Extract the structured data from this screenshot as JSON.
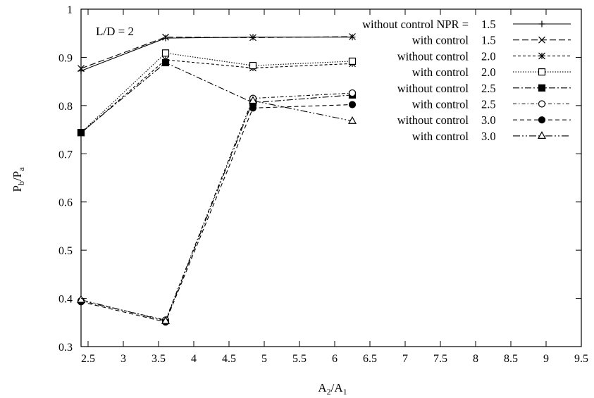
{
  "chart_data": {
    "type": "line",
    "annotation": "L/D = 2",
    "xlabel": {
      "main": "A",
      "sub1": "2",
      "mid": "/A",
      "sub2": "1"
    },
    "ylabel": {
      "main": "P",
      "sub1": "b",
      "mid": "/P",
      "sub2": "a"
    },
    "xlim": [
      2.4,
      9.5
    ],
    "ylim": [
      0.3,
      1.0
    ],
    "xticks": [
      "2.5",
      "3",
      "3.5",
      "4",
      "4.5",
      "5",
      "5.5",
      "6",
      "6.5",
      "7",
      "7.5",
      "8",
      "8.5",
      "9",
      "9.5"
    ],
    "yticks": [
      "0.3",
      "0.4",
      "0.5",
      "0.6",
      "0.7",
      "0.8",
      "0.9",
      "1"
    ],
    "grid": false,
    "legend_position": "top-right",
    "series": [
      {
        "name": "without control NPR =",
        "npr": "1.5",
        "dash": "",
        "marker": "plus",
        "x": [
          2.4,
          3.6,
          4.84,
          6.25
        ],
        "y": [
          0.872,
          0.94,
          0.942,
          0.942
        ]
      },
      {
        "name": "with control",
        "npr": "1.5",
        "dash": "9,4",
        "marker": "cross",
        "x": [
          2.4,
          3.6,
          4.84,
          6.25
        ],
        "y": [
          0.877,
          0.942,
          0.941,
          0.943
        ]
      },
      {
        "name": "without control",
        "npr": "2.0",
        "dash": "4,3",
        "marker": "star",
        "x": [
          2.4,
          3.6,
          4.84,
          6.25
        ],
        "y": [
          0.743,
          0.895,
          0.878,
          0.887
        ]
      },
      {
        "name": "with control",
        "npr": "2.0",
        "dash": "1.5,2",
        "marker": "square-open",
        "x": [
          2.4,
          3.6,
          4.84,
          6.25
        ],
        "y": [
          0.744,
          0.909,
          0.883,
          0.892
        ]
      },
      {
        "name": "without control",
        "npr": "2.5",
        "dash": "9,3,2,3",
        "marker": "square-filled",
        "x": [
          2.4,
          3.6,
          4.84,
          6.25
        ],
        "y": [
          0.744,
          0.889,
          0.806,
          0.822
        ]
      },
      {
        "name": "with control",
        "npr": "2.5",
        "dash": "5,3,1.5,3",
        "marker": "circle-open",
        "x": [
          2.4,
          3.6,
          4.84,
          6.25
        ],
        "y": [
          0.395,
          0.355,
          0.815,
          0.826
        ]
      },
      {
        "name": "without control",
        "npr": "3.0",
        "dash": "6,4",
        "marker": "circle-filled",
        "x": [
          2.4,
          3.6,
          4.84,
          6.25
        ],
        "y": [
          0.393,
          0.351,
          0.795,
          0.802
        ]
      },
      {
        "name": "with control",
        "npr": "3.0",
        "dash": "10,3,2,3,2,3",
        "marker": "triangle-open",
        "x": [
          2.4,
          3.6,
          4.84,
          6.25
        ],
        "y": [
          0.397,
          0.353,
          0.81,
          0.768
        ]
      }
    ]
  }
}
